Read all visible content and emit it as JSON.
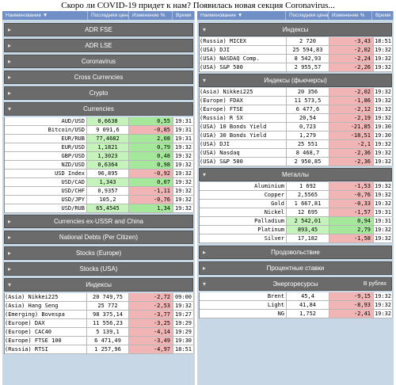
{
  "page_title": "Скоро ли COVID-19 придет к нам? Появилась новая секция Coronavirus...",
  "header": {
    "name": "Наименование ▼",
    "price": "Последняя цена",
    "change": "Изменение %",
    "time": "Время"
  },
  "left": {
    "sections_top": [
      "ADR FSE",
      "ADR LSE",
      "Coronavirus",
      "Cross Currencies",
      "Crypto"
    ],
    "currencies": {
      "title": "Currencies",
      "rows": [
        {
          "name": "AUD/USD",
          "price": "0,6638",
          "change": "0,55",
          "time": "19:31"
        },
        {
          "name": "Bitcoin/USD",
          "price": "9 091,6",
          "change": "-0,85",
          "time": "19:31"
        },
        {
          "name": "EUR/RUB",
          "price": "77,4682",
          "change": "2,08",
          "time": "19:31"
        },
        {
          "name": "EUR/USD",
          "price": "1,1821",
          "change": "0,79",
          "time": "19:32"
        },
        {
          "name": "GBP/USD",
          "price": "1,3023",
          "change": "0,48",
          "time": "19:32"
        },
        {
          "name": "NZD/USD",
          "price": "0,6364",
          "change": "0,98",
          "time": "19:32"
        },
        {
          "name": "USD Index",
          "price": "96,895",
          "change": "-0,92",
          "time": "19:32"
        },
        {
          "name": "USD/CAD",
          "price": "1,343",
          "change": "0,07",
          "time": "19:32"
        },
        {
          "name": "USD/CHF",
          "price": "0,9357",
          "change": "-1,11",
          "time": "19:32"
        },
        {
          "name": "USD/JPY",
          "price": "105,2",
          "change": "-0,76",
          "time": "19:32"
        },
        {
          "name": "USD/RUB",
          "price": "65,4545",
          "change": "1,34",
          "time": "19:32"
        }
      ]
    },
    "sections_mid": [
      "Currencies ex-USSR and China",
      "National Debts (Per Citizen)",
      "Stocks (Europe)",
      "Stocks (USA)"
    ],
    "indices": {
      "title": "Индексы",
      "rows": [
        {
          "name": "(Asia) Nikkei225",
          "price": "20 749,75",
          "change": "-2,72",
          "time": "09:00"
        },
        {
          "name": "(Asia) Hang Seng",
          "price": "25 772",
          "change": "-2,53",
          "time": "19:32"
        },
        {
          "name": "(Emerging) Bovespa",
          "price": "98 375,14",
          "change": "-3,77",
          "time": "19:27"
        },
        {
          "name": "(Europe) DAX",
          "price": "11 556,23",
          "change": "-3,25",
          "time": "19:29"
        },
        {
          "name": "(Europe) CAC40",
          "price": "5 139,1",
          "change": "-4,14",
          "time": "19:29"
        },
        {
          "name": "(Europe) FTSE 100",
          "price": "6 471,49",
          "change": "-3,49",
          "time": "19:30"
        },
        {
          "name": "(Russia) RTSI",
          "price": "1 257,96",
          "change": "-4,97",
          "time": "18:51"
        }
      ]
    }
  },
  "right": {
    "indices": {
      "title": "Индексы",
      "rows": [
        {
          "name": "(Russia) MICEX",
          "price": "2 720",
          "change": "-3,43",
          "time": "18:51"
        },
        {
          "name": "(USA) DJI",
          "price": "25 594,83",
          "change": "-2,02",
          "time": "19:32"
        },
        {
          "name": "(USA) NASDAQ Comp.",
          "price": "8 542,93",
          "change": "-2,24",
          "time": "19:32"
        },
        {
          "name": "(USA) S&P 500",
          "price": "2 955,57",
          "change": "-2,26",
          "time": "19:32"
        }
      ]
    },
    "futures": {
      "title": "Индексы (фьючерсы)",
      "rows": [
        {
          "name": "(Asia) Nikkei225",
          "price": "20 356",
          "change": "-2,02",
          "time": "19:32"
        },
        {
          "name": "(Europe) FDAX",
          "price": "11 573,5",
          "change": "-1,86",
          "time": "19:32"
        },
        {
          "name": "(Europe) FTSE",
          "price": "6 477,6",
          "change": "-2,12",
          "time": "19:32"
        },
        {
          "name": "(Russia) R SX",
          "price": "20,54",
          "change": "-2,19",
          "time": "19:32"
        },
        {
          "name": "(USA) 10 Bonds Yield",
          "price": "0,723",
          "change": "-21,85",
          "time": "19:30"
        },
        {
          "name": "(USA) 30 Bonds Yield",
          "price": "1,279",
          "change": "-18,51",
          "time": "19:30"
        },
        {
          "name": "(USA) DJI",
          "price": "25 551",
          "change": "-2,1",
          "time": "19:32"
        },
        {
          "name": "(USA) Nasdaq",
          "price": "8 468,7",
          "change": "-2,36",
          "time": "19:32"
        },
        {
          "name": "(USA) S&P 500",
          "price": "2 950,85",
          "change": "-2,36",
          "time": "19:32"
        }
      ]
    },
    "metals": {
      "title": "Металлы",
      "rows": [
        {
          "name": "Aluminium",
          "price": "1 692",
          "change": "-1,53",
          "time": "19:32"
        },
        {
          "name": "Copper",
          "price": "2,5565",
          "change": "-0,76",
          "time": "19:32"
        },
        {
          "name": "Gold",
          "price": "1 667,81",
          "change": "-0,33",
          "time": "19:32"
        },
        {
          "name": "Nickel",
          "price": "12 695",
          "change": "-1,57",
          "time": "19:31"
        },
        {
          "name": "Palladium",
          "price": "2 542,01",
          "change": "0,94",
          "time": "19:31"
        },
        {
          "name": "Platinum",
          "price": "893,45",
          "change": "2,79",
          "time": "19:32"
        },
        {
          "name": "Silver",
          "price": "17,182",
          "change": "-1,58",
          "time": "19:32"
        }
      ]
    },
    "sections": [
      "Продовольствие",
      "Процентные ставки"
    ],
    "energy": {
      "title": "Энергоресурсы",
      "currency_note": "В рублях",
      "rows": [
        {
          "name": "Brent",
          "price": "45,4",
          "change": "-9,15",
          "time": "19:32"
        },
        {
          "name": "Light",
          "price": "41,84",
          "change": "-8,93",
          "time": "19:32"
        },
        {
          "name": "NG",
          "price": "1,752",
          "change": "-2,41",
          "time": "19:32"
        }
      ]
    }
  },
  "colors": {
    "header_bg": "#6f8fc6",
    "section_bg": "#6b6b6b",
    "panel_bg": "#c7d7e6",
    "negative": "#f2b5b5",
    "positive": "#a6e89b"
  }
}
